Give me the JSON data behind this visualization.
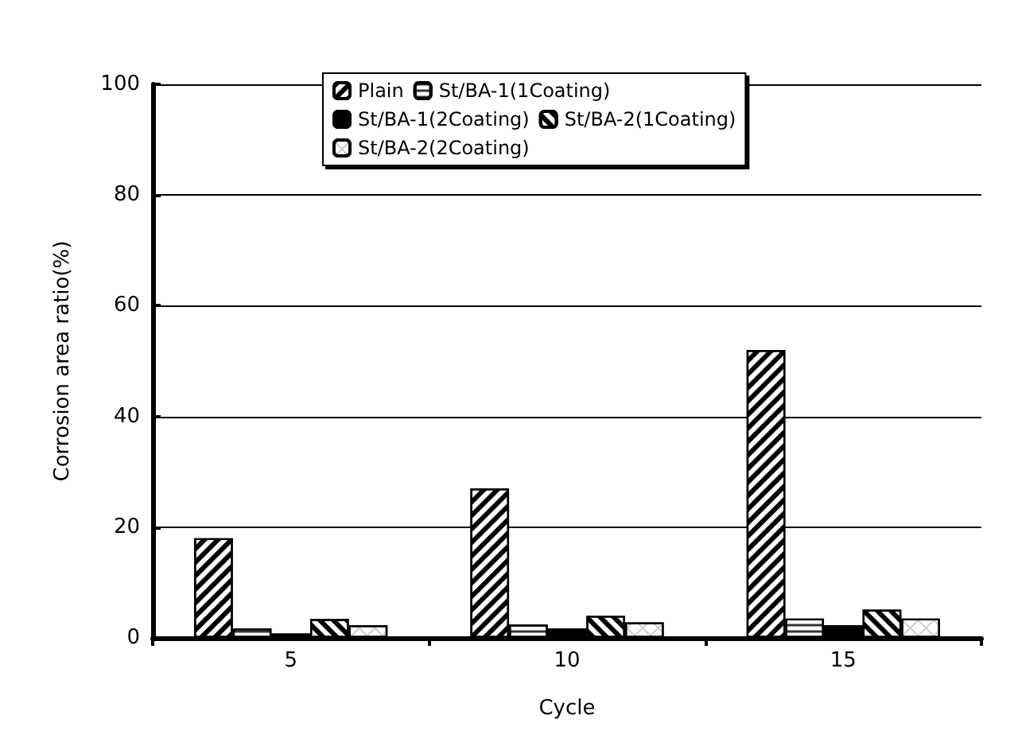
{
  "chart_data": {
    "type": "bar",
    "xlabel": "Cycle",
    "ylabel": "Corrosion area ratio(%)",
    "categories": [
      "5",
      "10",
      "15"
    ],
    "series": [
      {
        "name": "Plain",
        "color": "#ffffff",
        "values": [
          18,
          27,
          52
        ]
      },
      {
        "name": "St/BA-1(1Coating)",
        "color": "#ffffff",
        "values": [
          1.7,
          2.4,
          3.5
        ]
      },
      {
        "name": "St/BA-1(2Coating)",
        "color": "#000000",
        "values": [
          0.8,
          1.7,
          2.3
        ]
      },
      {
        "name": "St/BA-2(1Coating)",
        "color": "#ffffff",
        "values": [
          3.4,
          4.0,
          5.1
        ]
      },
      {
        "name": "St/BA-2(2Coating)",
        "color": "#ffffff",
        "values": [
          2.3,
          2.8,
          3.5
        ]
      }
    ],
    "ylim": [
      0,
      100
    ],
    "yticks": [
      0,
      20,
      40,
      60,
      80,
      100
    ],
    "grid": "y",
    "legend": "top"
  }
}
